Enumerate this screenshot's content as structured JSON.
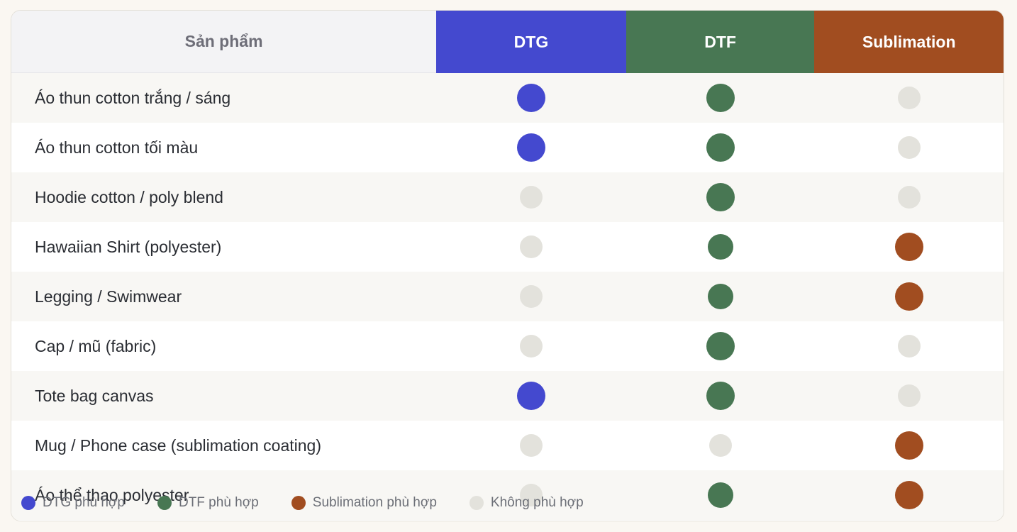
{
  "colors": {
    "dtg": "#4449cf",
    "dtf": "#487753",
    "sublimation": "#a14d20",
    "none": "#e3e2dc"
  },
  "header": {
    "product": "Sản phẩm",
    "dtg": "DTG",
    "dtf": "DTF",
    "sublimation": "Sublimation"
  },
  "rows": [
    {
      "name": "Áo thun cotton trắng / sáng",
      "dtg": true,
      "dtf": true,
      "sublimation": false
    },
    {
      "name": "Áo thun cotton tối màu",
      "dtg": true,
      "dtf": true,
      "sublimation": false
    },
    {
      "name": "Hoodie cotton / poly blend",
      "dtg": false,
      "dtf": true,
      "sublimation": false
    },
    {
      "name": "Hawaiian Shirt (polyester)",
      "dtg": false,
      "dtf": true,
      "sublimation": true
    },
    {
      "name": "Legging / Swimwear",
      "dtg": false,
      "dtf": true,
      "sublimation": true
    },
    {
      "name": "Cap / mũ (fabric)",
      "dtg": false,
      "dtf": true,
      "sublimation": false
    },
    {
      "name": "Tote bag canvas",
      "dtg": true,
      "dtf": true,
      "sublimation": false
    },
    {
      "name": "Mug / Phone case (sublimation coating)",
      "dtg": false,
      "dtf": false,
      "sublimation": true
    },
    {
      "name": "Áo thể thao polyester",
      "dtg": false,
      "dtf": true,
      "sublimation": true
    }
  ],
  "legend": [
    {
      "label": "DTG phù hợp",
      "color": "#4449cf"
    },
    {
      "label": "DTF phù hợp",
      "color": "#487753"
    },
    {
      "label": "Sublimation phù hợp",
      "color": "#a14d20"
    },
    {
      "label": "Không phù hợp",
      "color": "#e3e2dc"
    }
  ]
}
